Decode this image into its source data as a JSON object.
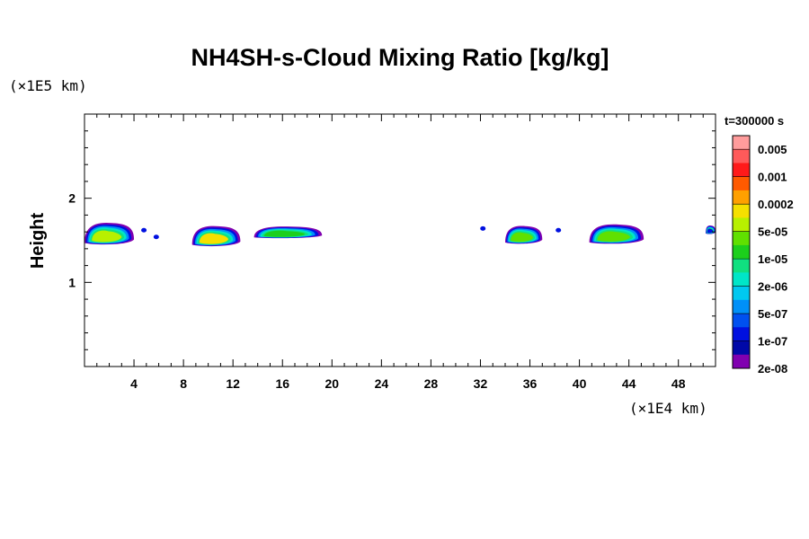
{
  "chart_data": {
    "type": "heatmap",
    "title": "NH4SH-s-Cloud Mixing Ratio [kg/kg]",
    "xlabel": "",
    "ylabel": "Height",
    "x_unit": "(×1E4 km)",
    "y_unit": "(×1E5 km)",
    "time_label": "t=300000 s",
    "xlim": [
      0,
      51
    ],
    "ylim": [
      0,
      3
    ],
    "x_ticks": [
      4,
      8,
      12,
      16,
      20,
      24,
      28,
      32,
      36,
      40,
      44,
      48
    ],
    "y_ticks": [
      1,
      2
    ],
    "colorbar": {
      "labels": [
        "0.005",
        "0.001",
        "0.0002",
        "5e-05",
        "1e-05",
        "2e-06",
        "5e-07",
        "1e-07",
        "2e-08"
      ],
      "colors": [
        "#ff9c9c",
        "#ff5a5a",
        "#ff1a1a",
        "#ff5a00",
        "#ffa000",
        "#f5e000",
        "#b8f000",
        "#60e000",
        "#1ccf1c",
        "#10e080",
        "#00e6c8",
        "#00c8f0",
        "#0090f8",
        "#0050f0",
        "#0010e0",
        "#0008a8",
        "#8000b0"
      ]
    },
    "clouds": [
      {
        "x0": 0,
        "x1": 4.0,
        "top": 1.72,
        "bottom": 1.44,
        "core": "#b8f000"
      },
      {
        "x0": 8.7,
        "x1": 12.6,
        "top": 1.68,
        "bottom": 1.42,
        "core": "#f5e000"
      },
      {
        "x0": 13.7,
        "x1": 19.2,
        "top": 1.67,
        "bottom": 1.52,
        "core": "#1ccf1c"
      },
      {
        "x0": 34.0,
        "x1": 37.0,
        "top": 1.68,
        "bottom": 1.45,
        "core": "#60e000"
      },
      {
        "x0": 40.8,
        "x1": 45.2,
        "top": 1.7,
        "bottom": 1.45,
        "core": "#60e000"
      },
      {
        "x0": 50.2,
        "x1": 51.0,
        "top": 1.68,
        "bottom": 1.57,
        "core": "#0010e0"
      }
    ],
    "specks": [
      {
        "x": 4.8,
        "y": 1.62
      },
      {
        "x": 5.8,
        "y": 1.54
      },
      {
        "x": 32.2,
        "y": 1.64
      },
      {
        "x": 38.3,
        "y": 1.62
      }
    ]
  }
}
